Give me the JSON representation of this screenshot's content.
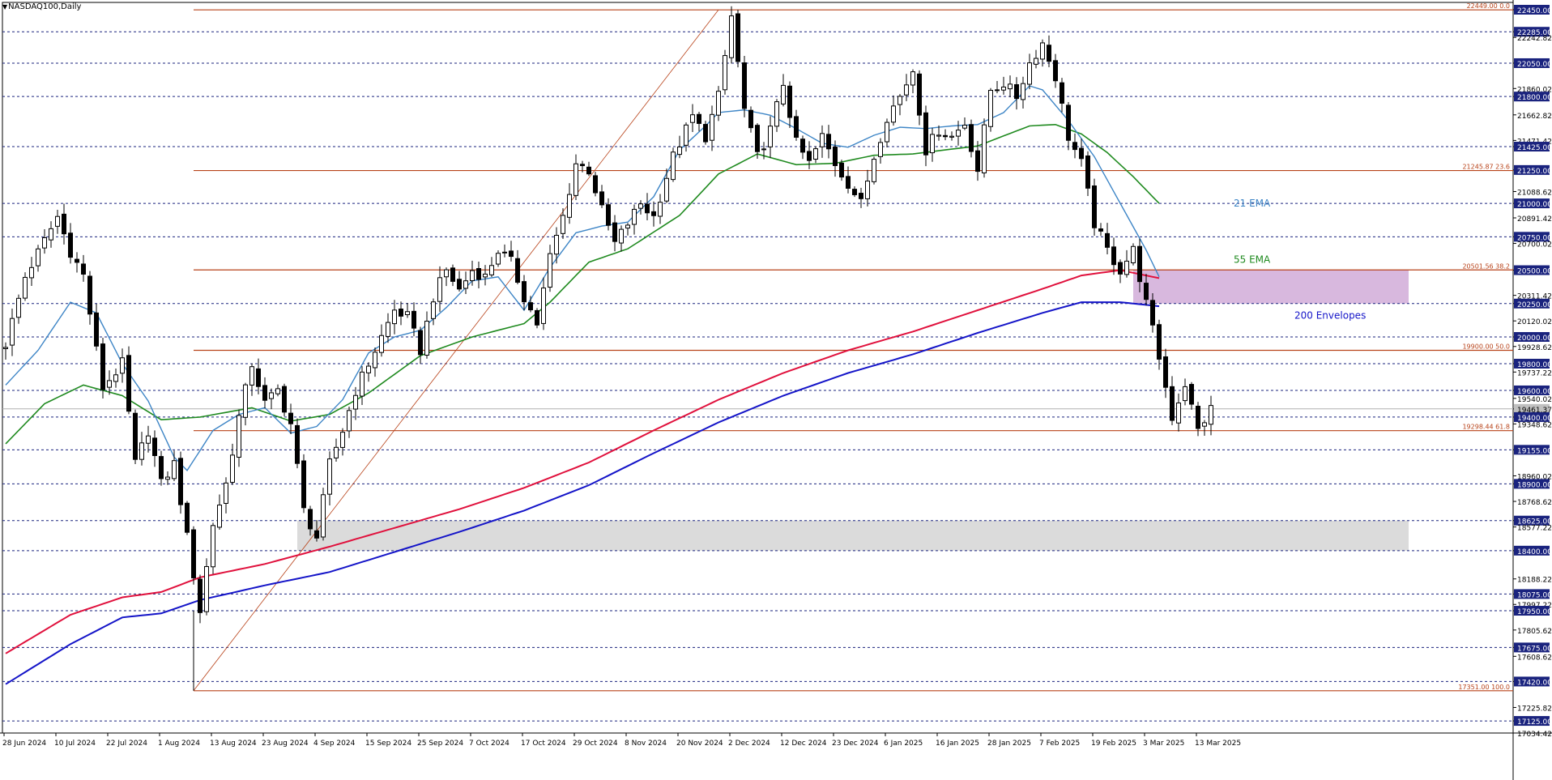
{
  "window": {
    "title": "NASDAQ100,Daily",
    "menu_arrow": "▼"
  },
  "chart_data": {
    "type": "candlestick",
    "symbol": "NASDAQ100",
    "timeframe": "Daily",
    "ylim": [
      17034.42,
      22450.0
    ],
    "current_price": 19461.37,
    "colors": {
      "bull": "#ffffff",
      "bear": "#000000",
      "ema21": "#3d85c6",
      "ema55": "#1f8a1f",
      "env_upper": "#e0103c",
      "env_lower": "#1414c8",
      "fib": "#b8431a",
      "zone_resistance": "#d6b4dc",
      "zone_support": "#d9d9d9",
      "grid": "#1a237e",
      "axis_badge_bg": "#1a237e",
      "axis_badge_text": "#ffffff",
      "current_badge_bg": "#c0c0c0"
    },
    "x_labels": [
      "28 Jun 2024",
      "10 Jul 2024",
      "22 Jul 2024",
      "1 Aug 2024",
      "13 Aug 2024",
      "23 Aug 2024",
      "4 Sep 2024",
      "15 Sep 2024",
      "25 Sep 2024",
      "7 Oct 2024",
      "17 Oct 2024",
      "29 Oct 2024",
      "8 Nov 2024",
      "20 Nov 2024",
      "2 Dec 2024",
      "12 Dec 2024",
      "23 Dec 2024",
      "6 Jan 2025",
      "16 Jan 2025",
      "28 Jan 2025",
      "7 Feb 2025",
      "19 Feb 2025",
      "3 Mar 2025",
      "13 Mar 2025"
    ],
    "y_ticks": [
      "22450.00",
      "22285.00",
      "22242.82",
      "22050.00",
      "21860.02",
      "21800.00",
      "21662.82",
      "21471.42",
      "21425.00",
      "21250.00",
      "21088.62",
      "21000.00",
      "20891.42",
      "20750.00",
      "20700.02",
      "20500.00",
      "20311.42",
      "20250.00",
      "20120.02",
      "20000.00",
      "19928.62",
      "19800.00",
      "19737.22",
      "19600.00",
      "19540.02",
      "19461.37",
      "19400.00",
      "19348.62",
      "19155.00",
      "18960.02",
      "18900.00",
      "18768.62",
      "18625.00",
      "18577.22",
      "18400.00",
      "18188.22",
      "18075.00",
      "17997.22",
      "17950.00",
      "17805.62",
      "17675.00",
      "17608.62",
      "17420.00",
      "17225.82",
      "17125.00",
      "17034.42"
    ],
    "badge_ticks": [
      "22450.00",
      "22285.00",
      "22050.00",
      "21800.00",
      "21425.00",
      "21250.00",
      "21000.00",
      "20750.00",
      "20500.00",
      "20250.00",
      "20000.00",
      "19800.00",
      "19600.00",
      "19400.00",
      "19155.00",
      "18900.00",
      "18625.00",
      "18400.00",
      "18075.00",
      "17950.00",
      "17675.00",
      "17420.00",
      "17125.00"
    ],
    "horizontal_levels": [
      22285,
      22050,
      21800,
      21425,
      21000,
      20750,
      20250,
      20000,
      19800,
      19600,
      19400,
      19155,
      18900,
      18625,
      18400,
      18075,
      17950,
      17675,
      17420,
      17125
    ],
    "fibonacci": {
      "low": 17351.0,
      "high": 22449.0,
      "levels": [
        {
          "price": 22449.0,
          "label": "22449.00 0.0"
        },
        {
          "price": 21245.87,
          "label": "21245.87 23.6"
        },
        {
          "price": 20501.56,
          "label": "20501.56 38.2"
        },
        {
          "price": 19900.0,
          "label": "19900.00 50.0"
        },
        {
          "price": 19298.44,
          "label": "19298.44 61.8"
        },
        {
          "price": 17351.0,
          "label": "17351.00 100.0"
        }
      ]
    },
    "zones": [
      {
        "name": "resistance-zone",
        "top": 20500.0,
        "bottom": 20250.0,
        "start_day": 174,
        "end_day": 214
      },
      {
        "name": "support-zone",
        "top": 18625.0,
        "bottom": 18400.0,
        "start_day": 45,
        "end_day": 214
      }
    ],
    "annotations": [
      {
        "text": "21 EMA",
        "color": "#3d85c6",
        "price": 21000
      },
      {
        "text": "55 EMA",
        "color": "#1f8a1f",
        "price": 20580
      },
      {
        "text": "200 Envelopes",
        "color": "#1414c8",
        "price": 20160
      }
    ],
    "ohlc_anchors": [
      [
        0,
        19950
      ],
      [
        3,
        20450
      ],
      [
        8,
        20900
      ],
      [
        10,
        20640
      ],
      [
        12,
        20460
      ],
      [
        15,
        19620
      ],
      [
        18,
        19800
      ],
      [
        20,
        19050
      ],
      [
        22,
        19300
      ],
      [
        24,
        18900
      ],
      [
        26,
        19050
      ],
      [
        28,
        18500
      ],
      [
        30,
        17950
      ],
      [
        32,
        18600
      ],
      [
        34,
        18900
      ],
      [
        36,
        19400
      ],
      [
        38,
        19800
      ],
      [
        40,
        19500
      ],
      [
        42,
        19600
      ],
      [
        44,
        19350
      ],
      [
        46,
        18700
      ],
      [
        48,
        18500
      ],
      [
        50,
        19050
      ],
      [
        52,
        19300
      ],
      [
        54,
        19600
      ],
      [
        57,
        19900
      ],
      [
        60,
        20200
      ],
      [
        62,
        20150
      ],
      [
        64,
        19900
      ],
      [
        66,
        20300
      ],
      [
        68,
        20500
      ],
      [
        70,
        20350
      ],
      [
        72,
        20500
      ],
      [
        74,
        20450
      ],
      [
        76,
        20650
      ],
      [
        78,
        20560
      ],
      [
        80,
        20300
      ],
      [
        82,
        20100
      ],
      [
        84,
        20600
      ],
      [
        86,
        20900
      ],
      [
        88,
        21300
      ],
      [
        90,
        21250
      ],
      [
        92,
        20950
      ],
      [
        94,
        20700
      ],
      [
        96,
        20850
      ],
      [
        98,
        21000
      ],
      [
        100,
        20900
      ],
      [
        103,
        21350
      ],
      [
        106,
        21650
      ],
      [
        108,
        21500
      ],
      [
        110,
        21800
      ],
      [
        112,
        22400
      ],
      [
        114,
        21700
      ],
      [
        116,
        21350
      ],
      [
        118,
        21550
      ],
      [
        120,
        21900
      ],
      [
        122,
        21450
      ],
      [
        124,
        21300
      ],
      [
        126,
        21500
      ],
      [
        128,
        21300
      ],
      [
        130,
        21150
      ],
      [
        132,
        21000
      ],
      [
        134,
        21350
      ],
      [
        136,
        21650
      ],
      [
        138,
        21800
      ],
      [
        140,
        22000
      ],
      [
        142,
        21400
      ],
      [
        144,
        21550
      ],
      [
        146,
        21500
      ],
      [
        148,
        21600
      ],
      [
        150,
        21250
      ],
      [
        152,
        21850
      ],
      [
        154,
        21900
      ],
      [
        156,
        21800
      ],
      [
        158,
        22050
      ],
      [
        160,
        22200
      ],
      [
        162,
        21950
      ],
      [
        164,
        21500
      ],
      [
        166,
        21300
      ],
      [
        168,
        20850
      ],
      [
        170,
        20650
      ],
      [
        172,
        20500
      ],
      [
        174,
        20650
      ],
      [
        176,
        20250
      ],
      [
        178,
        19850
      ],
      [
        180,
        19400
      ],
      [
        182,
        19650
      ],
      [
        184,
        19300
      ],
      [
        186,
        19461
      ]
    ],
    "ema21_anchors": [
      [
        0,
        19640
      ],
      [
        5,
        19900
      ],
      [
        10,
        20260
      ],
      [
        14,
        20180
      ],
      [
        18,
        19800
      ],
      [
        22,
        19520
      ],
      [
        26,
        19100
      ],
      [
        28,
        19000
      ],
      [
        32,
        19300
      ],
      [
        36,
        19420
      ],
      [
        40,
        19470
      ],
      [
        44,
        19280
      ],
      [
        48,
        19330
      ],
      [
        52,
        19530
      ],
      [
        56,
        19880
      ],
      [
        60,
        20000
      ],
      [
        64,
        20050
      ],
      [
        68,
        20220
      ],
      [
        72,
        20420
      ],
      [
        76,
        20450
      ],
      [
        80,
        20200
      ],
      [
        84,
        20520
      ],
      [
        88,
        20780
      ],
      [
        92,
        20830
      ],
      [
        96,
        20860
      ],
      [
        100,
        21050
      ],
      [
        104,
        21400
      ],
      [
        108,
        21580
      ],
      [
        110,
        21680
      ],
      [
        114,
        21700
      ],
      [
        118,
        21660
      ],
      [
        122,
        21560
      ],
      [
        126,
        21450
      ],
      [
        130,
        21420
      ],
      [
        134,
        21510
      ],
      [
        138,
        21570
      ],
      [
        142,
        21560
      ],
      [
        146,
        21580
      ],
      [
        150,
        21590
      ],
      [
        154,
        21680
      ],
      [
        158,
        21880
      ],
      [
        160,
        21850
      ],
      [
        164,
        21620
      ],
      [
        168,
        21350
      ],
      [
        172,
        21000
      ],
      [
        176,
        20650
      ],
      [
        178,
        20450
      ]
    ],
    "ema55_anchors": [
      [
        0,
        19200
      ],
      [
        6,
        19500
      ],
      [
        12,
        19640
      ],
      [
        18,
        19560
      ],
      [
        24,
        19380
      ],
      [
        30,
        19400
      ],
      [
        38,
        19470
      ],
      [
        44,
        19370
      ],
      [
        50,
        19420
      ],
      [
        56,
        19580
      ],
      [
        64,
        19860
      ],
      [
        72,
        20000
      ],
      [
        80,
        20100
      ],
      [
        84,
        20260
      ],
      [
        90,
        20560
      ],
      [
        96,
        20660
      ],
      [
        104,
        20910
      ],
      [
        110,
        21220
      ],
      [
        116,
        21370
      ],
      [
        122,
        21290
      ],
      [
        128,
        21300
      ],
      [
        134,
        21360
      ],
      [
        140,
        21370
      ],
      [
        150,
        21430
      ],
      [
        158,
        21580
      ],
      [
        162,
        21590
      ],
      [
        166,
        21520
      ],
      [
        170,
        21380
      ],
      [
        174,
        21200
      ],
      [
        178,
        21000
      ]
    ],
    "env_upper_anchors": [
      [
        0,
        17630
      ],
      [
        10,
        17920
      ],
      [
        18,
        18050
      ],
      [
        24,
        18090
      ],
      [
        30,
        18200
      ],
      [
        40,
        18300
      ],
      [
        50,
        18430
      ],
      [
        60,
        18570
      ],
      [
        70,
        18710
      ],
      [
        80,
        18870
      ],
      [
        90,
        19060
      ],
      [
        100,
        19300
      ],
      [
        110,
        19530
      ],
      [
        120,
        19730
      ],
      [
        130,
        19900
      ],
      [
        140,
        20040
      ],
      [
        150,
        20200
      ],
      [
        160,
        20360
      ],
      [
        166,
        20460
      ],
      [
        172,
        20500
      ],
      [
        178,
        20440
      ]
    ],
    "env_lower_anchors": [
      [
        0,
        17400
      ],
      [
        10,
        17700
      ],
      [
        18,
        17900
      ],
      [
        24,
        17930
      ],
      [
        30,
        18030
      ],
      [
        40,
        18140
      ],
      [
        50,
        18240
      ],
      [
        60,
        18390
      ],
      [
        70,
        18540
      ],
      [
        80,
        18700
      ],
      [
        90,
        18890
      ],
      [
        100,
        19130
      ],
      [
        110,
        19360
      ],
      [
        120,
        19560
      ],
      [
        130,
        19730
      ],
      [
        140,
        19870
      ],
      [
        150,
        20030
      ],
      [
        160,
        20180
      ],
      [
        166,
        20260
      ],
      [
        172,
        20260
      ],
      [
        178,
        20230
      ]
    ],
    "xlabel": "",
    "ylabel": ""
  }
}
